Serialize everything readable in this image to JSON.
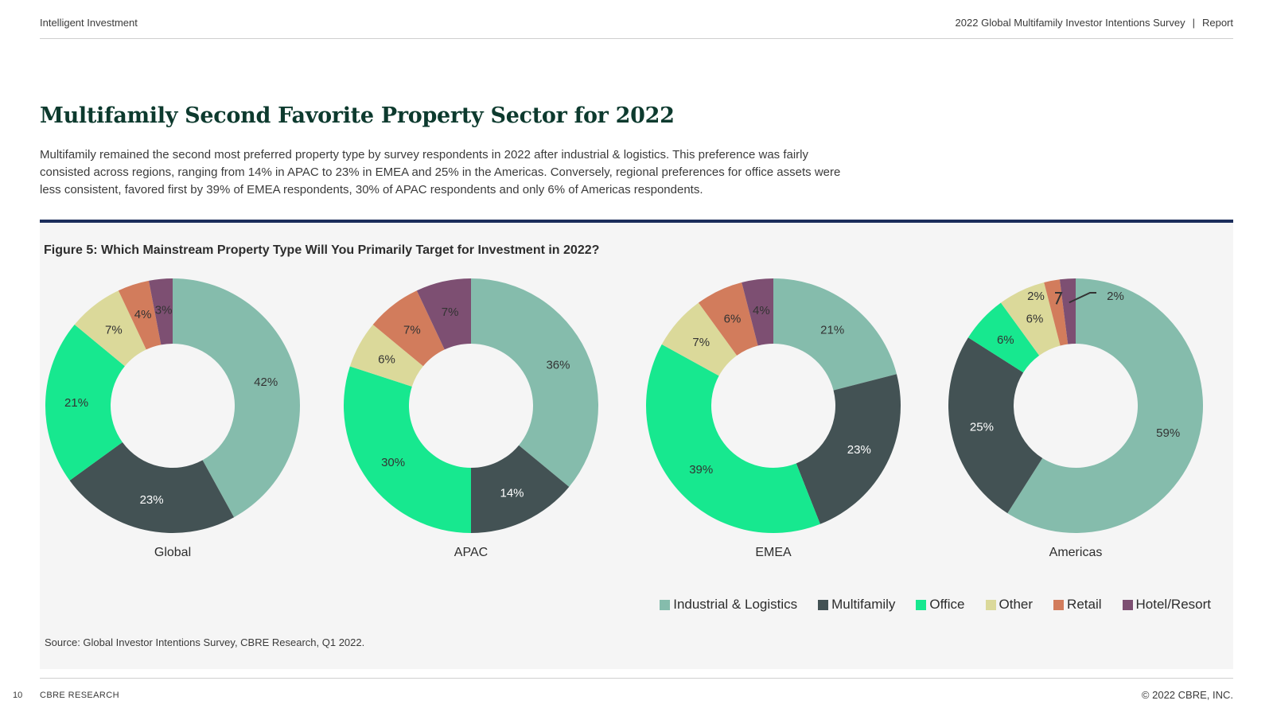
{
  "header": {
    "left": "Intelligent Investment",
    "right_title": "2022 Global Multifamily Investor Intentions Survey",
    "separator": "|",
    "right_label": "Report"
  },
  "title": "Multifamily Second Favorite Property Sector for 2022",
  "intro": "Multifamily remained the second most preferred property type by survey respondents in 2022 after industrial & logistics. This preference was fairly consisted across regions, ranging from 14% in APAC to 23% in EMEA and 25% in the Americas. Conversely, regional preferences for office assets were less consistent, favored first by 39% of EMEA respondents, 30% of APAC respondents and only 6% of Americas respondents.",
  "figure_title": "Figure 5: Which Mainstream Property Type Will You Primarily Target for Investment in 2022?",
  "source": "Source: Global Investor Intentions Survey, CBRE Research, Q1 2022.",
  "footer": {
    "page_number": "10",
    "left": "CBRE RESEARCH",
    "right": "© 2022 CBRE, INC."
  },
  "chart_data": {
    "type": "pie",
    "variant": "donut",
    "title": "Figure 5: Which Mainstream Property Type Will You Primarily Target for Investment in 2022?",
    "categories": [
      "Industrial & Logistics",
      "Multifamily",
      "Office",
      "Other",
      "Retail",
      "Hotel/Resort"
    ],
    "colors": [
      "#85bcac",
      "#435254",
      "#17e88f",
      "#dbd99a",
      "#d27c5c",
      "#7d4f72"
    ],
    "legend_position": "bottom-right",
    "series": [
      {
        "name": "Global",
        "values": [
          42,
          23,
          21,
          7,
          4,
          3
        ],
        "labels": [
          "42%",
          "23%",
          "21%",
          "7%",
          "4%",
          "3%"
        ]
      },
      {
        "name": "APAC",
        "values": [
          36,
          14,
          30,
          6,
          7,
          7
        ],
        "labels": [
          "36%",
          "14%",
          "30%",
          "6%",
          "7%",
          "7%"
        ]
      },
      {
        "name": "EMEA",
        "values": [
          21,
          23,
          39,
          7,
          6,
          4
        ],
        "labels": [
          "21%",
          "23%",
          "39%",
          "7%",
          "6%",
          "4%"
        ]
      },
      {
        "name": "Americas",
        "values": [
          59,
          25,
          6,
          6,
          2,
          2
        ],
        "labels": [
          "59%",
          "25%",
          "6%",
          "6%",
          "2%",
          "2%"
        ]
      }
    ]
  }
}
